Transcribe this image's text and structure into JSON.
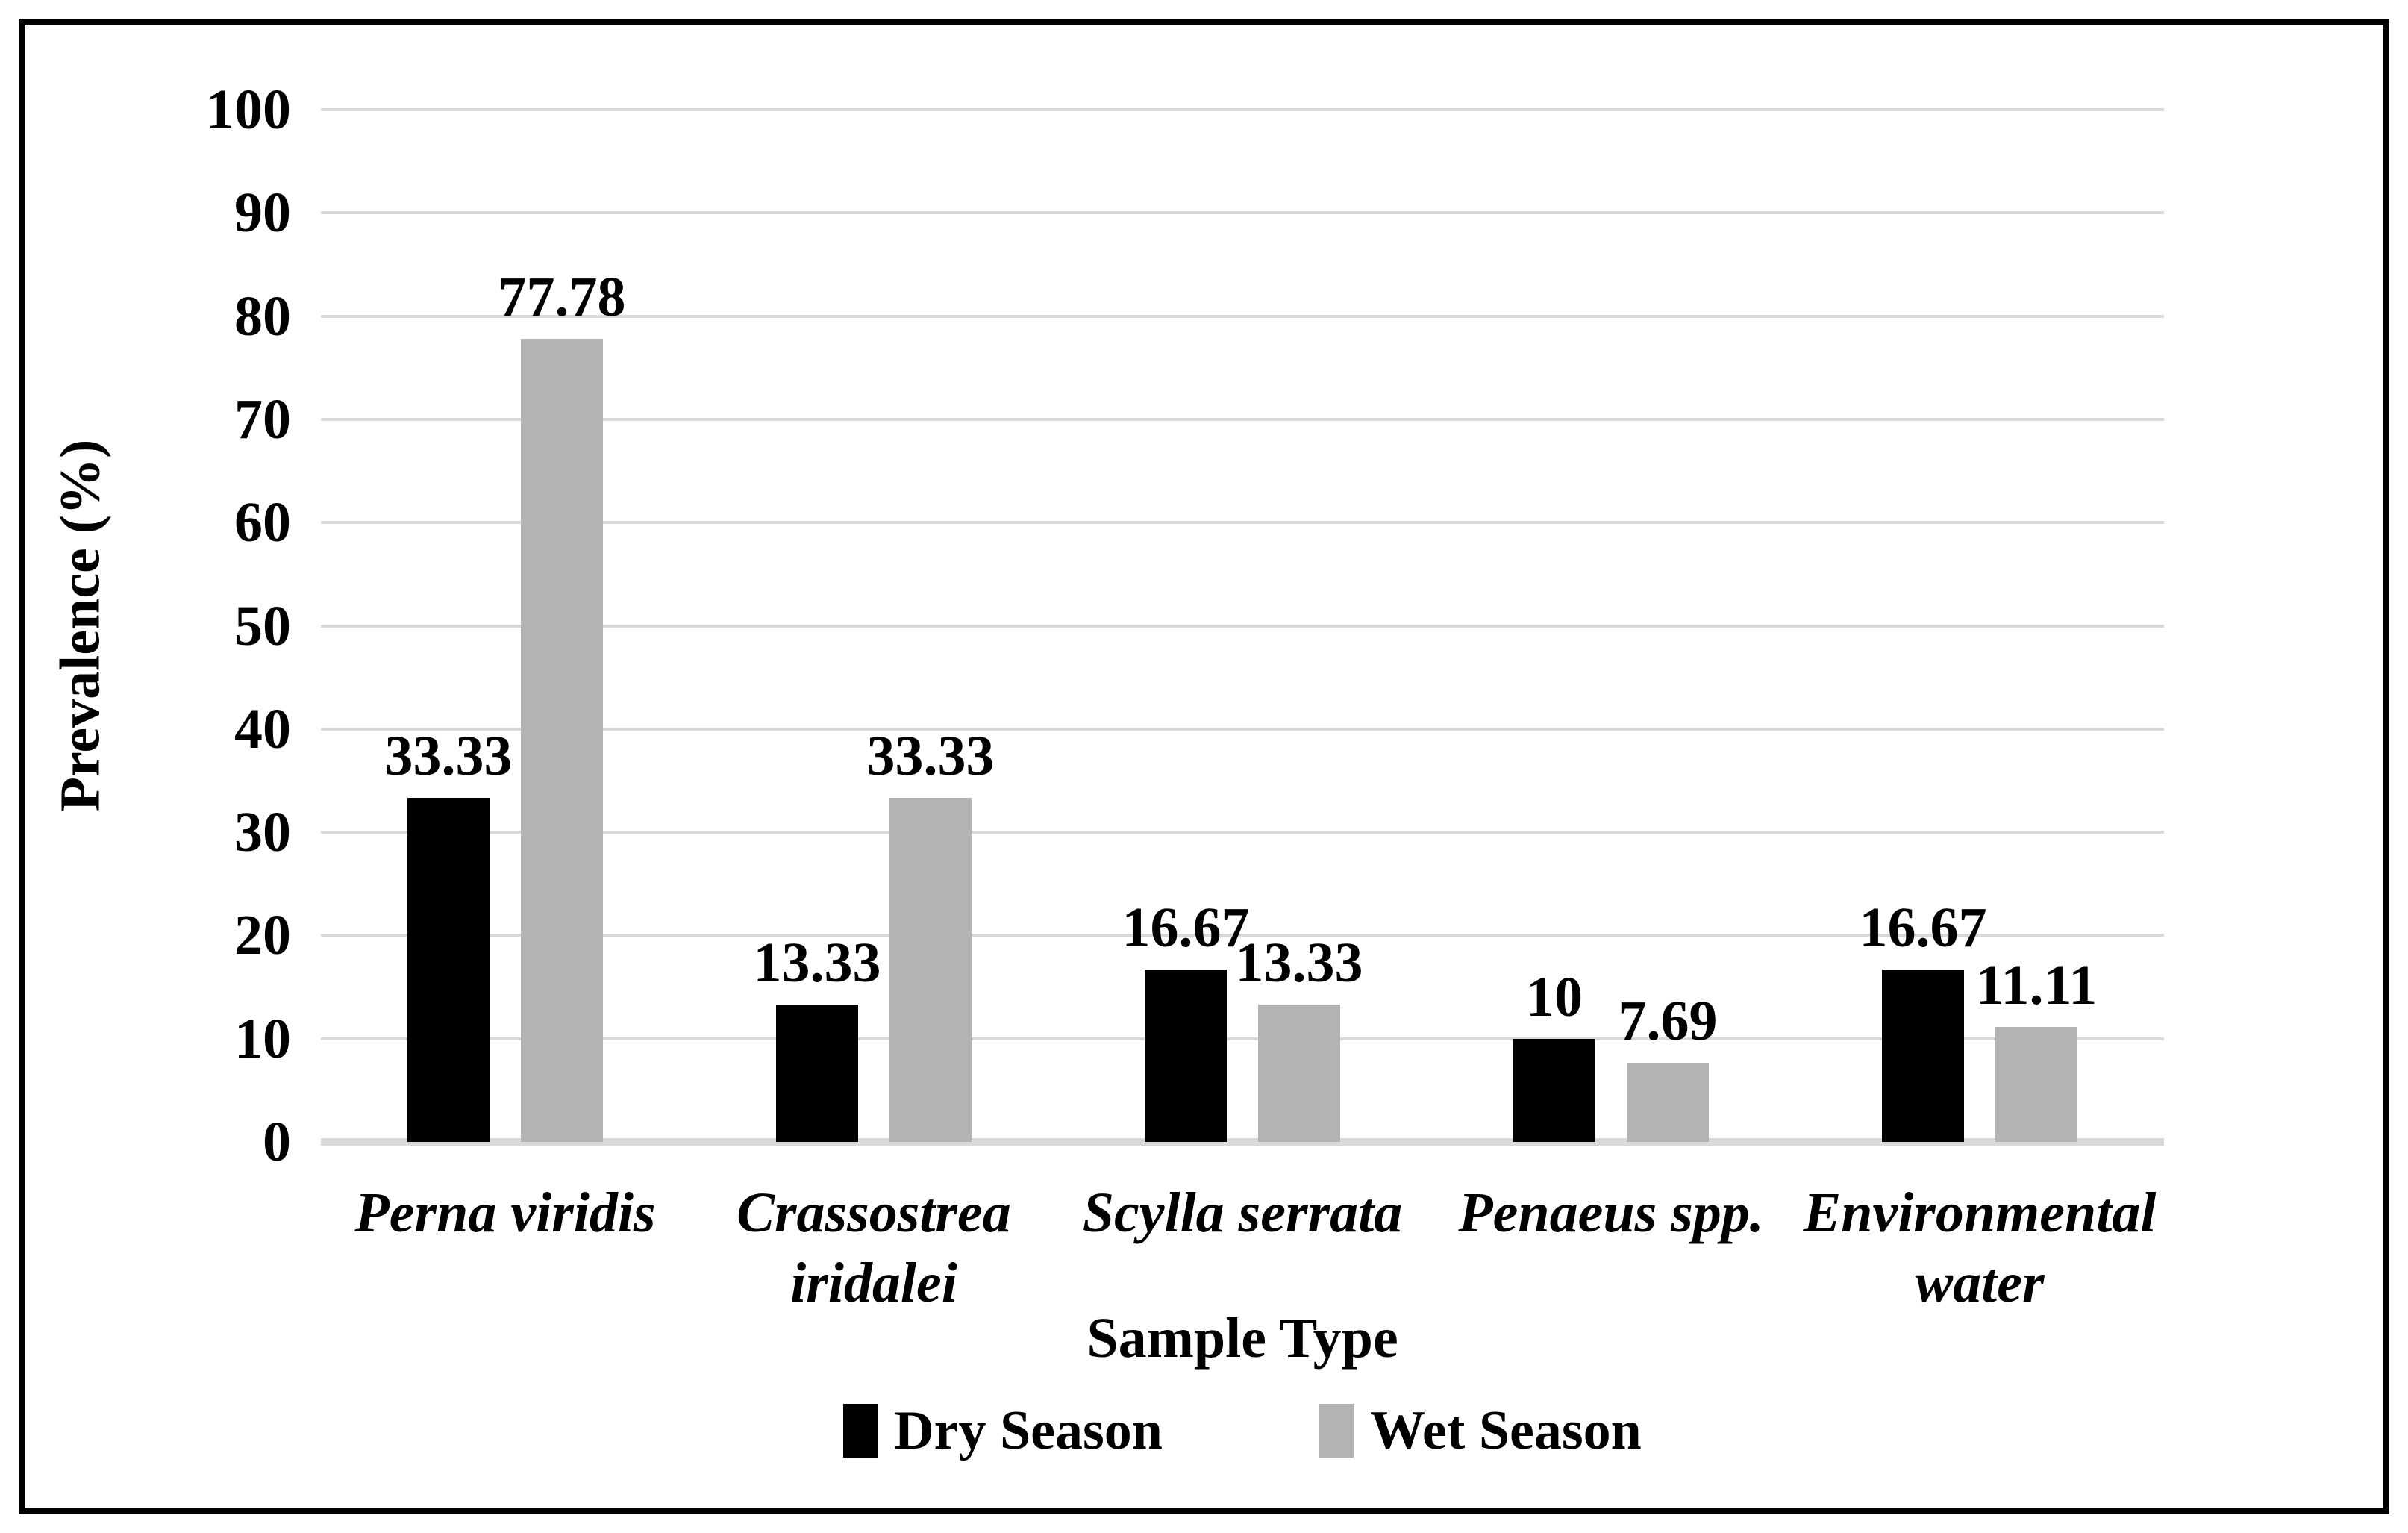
{
  "figure": {
    "background": "#ffffff",
    "frame_color": "#000000",
    "text_color": "#000000",
    "gridline_color": "#d9d9d9",
    "axisline_color": "#d9d9d9"
  },
  "chart_data": {
    "type": "bar",
    "title": "",
    "xlabel": "Sample Type",
    "ylabel": "Prevalence (%)",
    "ylim": [
      0,
      100
    ],
    "ytick_interval": 10,
    "ytick_labels": [
      "0",
      "10",
      "20",
      "30",
      "40",
      "50",
      "60",
      "70",
      "80",
      "90",
      "100"
    ],
    "grid": true,
    "legend_position": "bottom",
    "categories": [
      "Perna viridis",
      "Crassostrea iridalei",
      "Scylla serrata",
      "Penaeus spp.",
      "Environmental water"
    ],
    "category_label_lines": [
      [
        "Perna viridis"
      ],
      [
        "Crassostrea",
        "iridalei"
      ],
      [
        "Scylla serrata"
      ],
      [
        "Penaeus spp."
      ],
      [
        "Environmental",
        "water"
      ]
    ],
    "series": [
      {
        "name": "Dry Season",
        "color": "#000000",
        "values": [
          33.33,
          13.33,
          16.67,
          10,
          16.67
        ],
        "value_labels": [
          "33.33",
          "13.33",
          "16.67",
          "10",
          "16.67"
        ]
      },
      {
        "name": "Wet Season",
        "color": "#b3b3b3",
        "values": [
          77.78,
          33.33,
          13.33,
          7.69,
          11.11
        ],
        "value_labels": [
          "77.78",
          "33.33",
          "13.33",
          "7.69",
          "11.11"
        ]
      }
    ]
  }
}
